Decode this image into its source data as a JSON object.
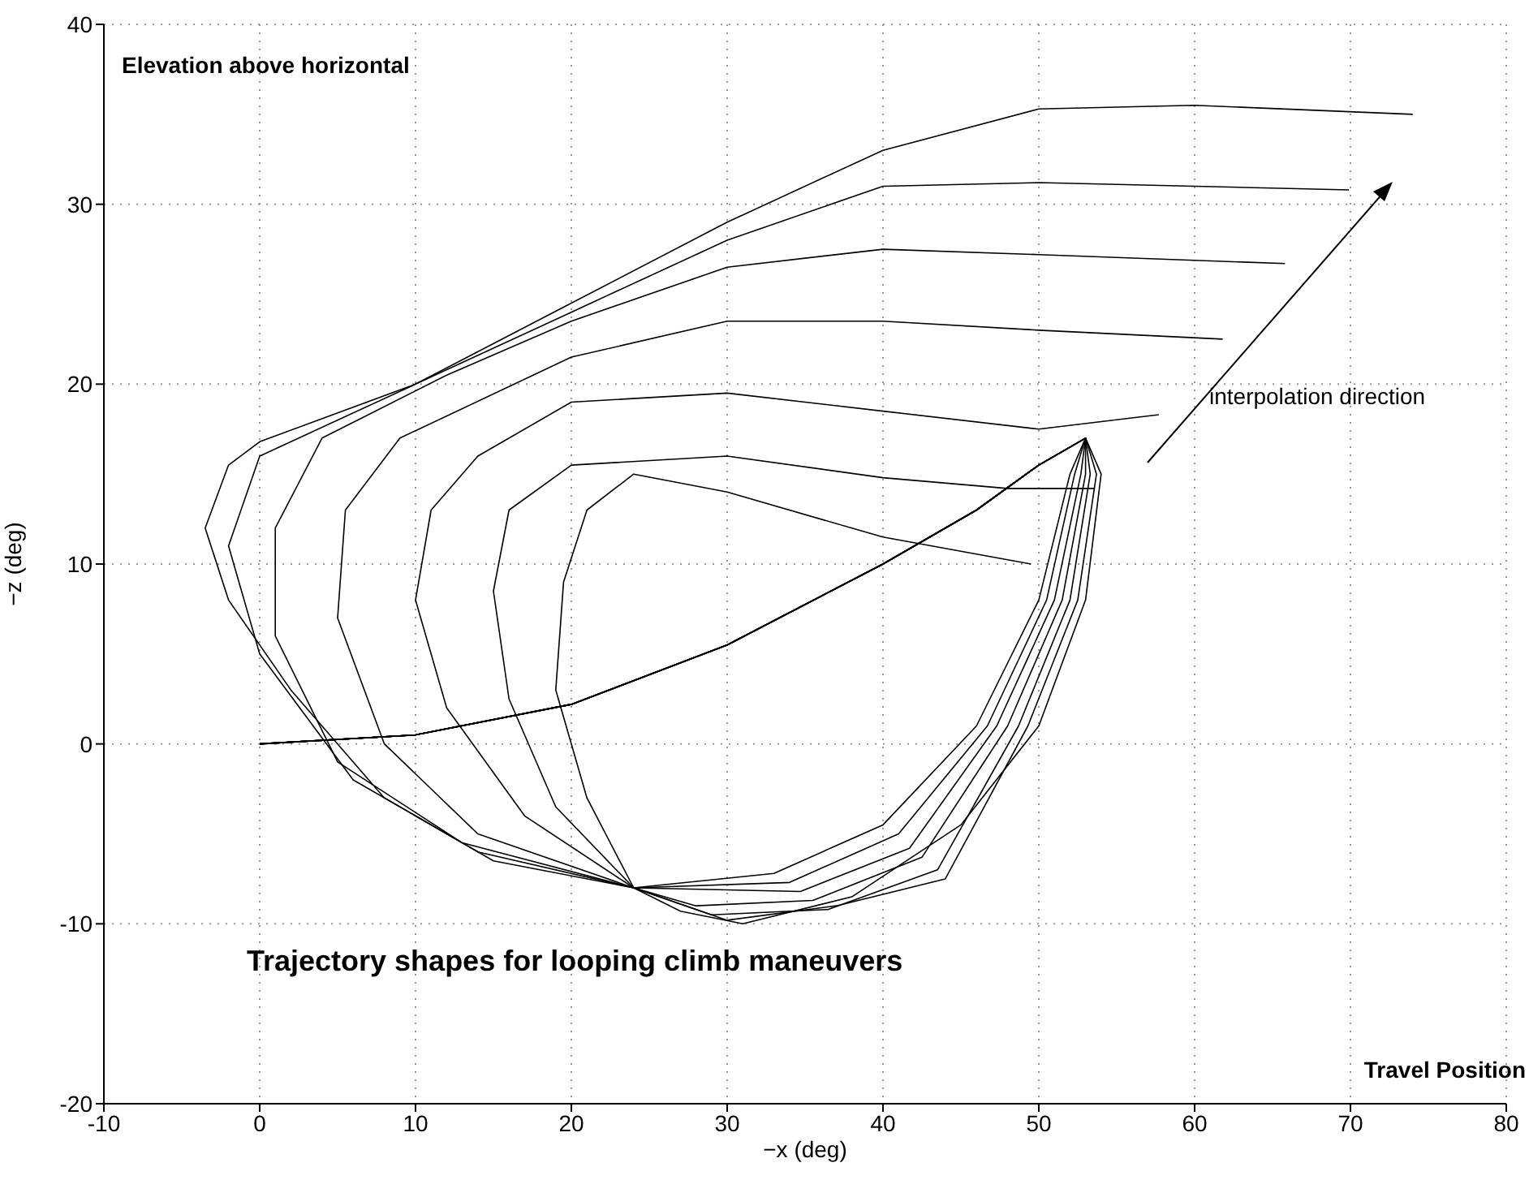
{
  "chart_data": {
    "type": "line",
    "xlabel": "−x (deg)",
    "ylabel": "−z (deg)",
    "annotations": [
      "Elevation above horizontal",
      "interpolation direction",
      "Trajectory shapes for looping climb maneuvers",
      "Travel Position"
    ],
    "xlim": [
      -10,
      80
    ],
    "xticks": [
      -10,
      0,
      10,
      20,
      30,
      40,
      50,
      60,
      70,
      80
    ],
    "ylim": [
      -20,
      40
    ],
    "yticks": [
      -20,
      -10,
      0,
      10,
      20,
      30,
      40
    ],
    "grid": true,
    "line_style": "solid",
    "series": [
      {
        "color": "#000000",
        "x": [
          0,
          10,
          20,
          30,
          40,
          46,
          50,
          53,
          52,
          50,
          46,
          40,
          33,
          24,
          21,
          19,
          19.5,
          21,
          24,
          30,
          40,
          49.5
        ],
        "values": [
          0,
          0.5,
          2.2,
          5.5,
          10,
          13,
          15.5,
          17,
          15,
          8,
          1,
          -4.5,
          -7.2,
          -8,
          -3,
          3,
          9,
          13,
          15,
          14,
          11.5,
          10
        ]
      },
      {
        "color": "#000000",
        "x": [
          0,
          10,
          20,
          30,
          40,
          46,
          50,
          53,
          52.3,
          50.5,
          46.7,
          41,
          34,
          24,
          19,
          16,
          15,
          16,
          20,
          30,
          40,
          48,
          53.6
        ],
        "values": [
          0,
          0.5,
          2.2,
          5.5,
          10,
          13,
          15.5,
          17,
          15,
          8,
          1,
          -5,
          -7.7,
          -8,
          -3.5,
          2.5,
          8.5,
          13,
          15.5,
          16,
          14.8,
          14.2,
          14.2
        ]
      },
      {
        "color": "#000000",
        "x": [
          0,
          10,
          20,
          30,
          40,
          46,
          50,
          53,
          52.7,
          51,
          47.3,
          41.7,
          34.7,
          24,
          17,
          12,
          10,
          11,
          14,
          20,
          30,
          40,
          50,
          57.7
        ],
        "values": [
          0,
          0.5,
          2.2,
          5.5,
          10,
          13,
          15.5,
          17,
          15,
          8,
          1,
          -5.8,
          -8.2,
          -8,
          -4,
          2,
          8,
          13,
          16,
          19,
          19.5,
          18.5,
          17.5,
          18.3
        ]
      },
      {
        "color": "#000000",
        "x": [
          0,
          10,
          20,
          30,
          40,
          46,
          50,
          53,
          53,
          51.5,
          48,
          42.5,
          35.5,
          28,
          24,
          14,
          8,
          5,
          5.5,
          9,
          20,
          30,
          40,
          50,
          61.8
        ],
        "values": [
          0,
          0.5,
          2.2,
          5.5,
          10,
          13,
          15.5,
          17,
          15,
          8,
          1,
          -6.3,
          -8.7,
          -9,
          -8,
          -5,
          0,
          7,
          13,
          17,
          21.5,
          23.5,
          23.5,
          23,
          22.5
        ]
      },
      {
        "color": "#000000",
        "x": [
          0,
          10,
          20,
          30,
          40,
          46,
          50,
          53,
          53.3,
          52,
          48.7,
          43.5,
          36.5,
          29,
          24,
          13,
          5,
          1,
          1,
          4,
          12,
          20,
          30,
          40,
          50,
          65.8
        ],
        "values": [
          0,
          0.5,
          2.2,
          5.5,
          10,
          13,
          15.5,
          17,
          15,
          8,
          1,
          -7,
          -9.2,
          -9.5,
          -8,
          -5.5,
          -1,
          6,
          12,
          17,
          20.5,
          23.5,
          26.5,
          27.5,
          27.2,
          26.7
        ]
      },
      {
        "color": "#000000",
        "x": [
          0,
          10,
          20,
          30,
          40,
          46,
          50,
          53,
          53.7,
          52.5,
          49.3,
          44,
          37,
          30,
          24,
          14,
          6,
          0,
          -2,
          0,
          10,
          20,
          30,
          40,
          50,
          69.9
        ],
        "values": [
          0,
          0.5,
          2.2,
          5.5,
          10,
          13,
          15.5,
          17,
          15,
          8,
          1,
          -7.5,
          -9,
          -9.8,
          -8,
          -6,
          -2,
          5,
          11,
          16,
          20,
          24,
          28,
          31,
          31.2,
          30.8
        ]
      },
      {
        "color": "#000000",
        "x": [
          0,
          10,
          20,
          30,
          40,
          46,
          50,
          53,
          54,
          53,
          50,
          45,
          38,
          31,
          27,
          24,
          15,
          8,
          2,
          -2,
          -3.5,
          -2,
          0,
          10,
          20,
          30,
          40,
          50,
          60,
          74
        ],
        "values": [
          0,
          0.5,
          2.2,
          5.5,
          10,
          13,
          15.5,
          17,
          15,
          8,
          1,
          -4.5,
          -8.5,
          -10,
          -9.3,
          -8,
          -6.5,
          -3,
          3,
          8,
          12,
          15.5,
          16.8,
          20,
          24.5,
          29,
          33,
          35.3,
          35.5,
          35
        ]
      }
    ]
  }
}
